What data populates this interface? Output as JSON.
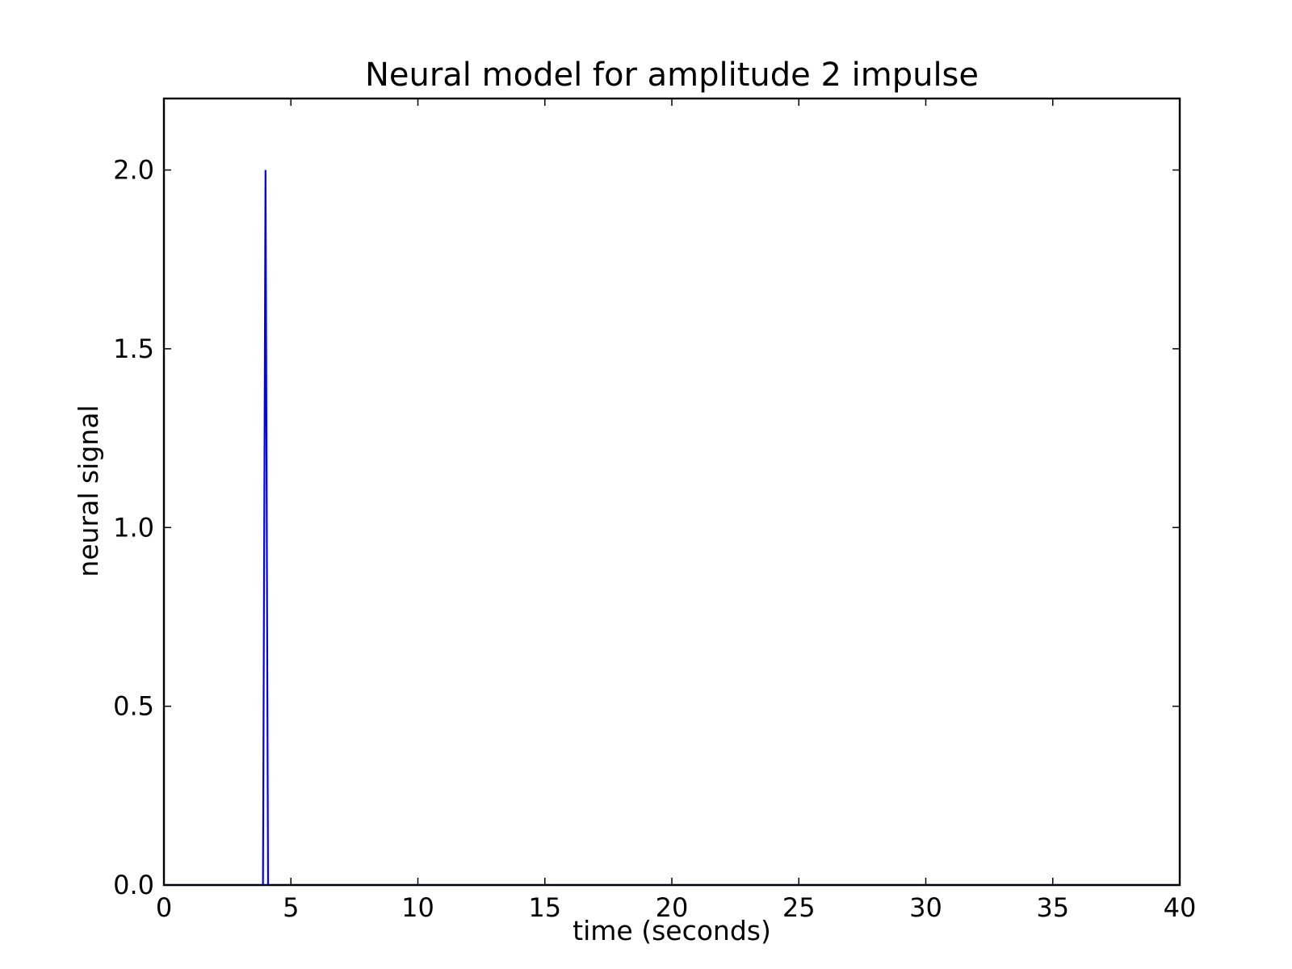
{
  "chart_data": {
    "type": "line",
    "title": "Neural model for amplitude 2 impulse",
    "xlabel": "time (seconds)",
    "ylabel": "neural signal",
    "xlim": [
      0,
      40
    ],
    "ylim": [
      0,
      2.2
    ],
    "x_ticks": [
      "0",
      "5",
      "10",
      "15",
      "20",
      "25",
      "30",
      "35",
      "40"
    ],
    "x_tick_values": [
      0,
      5,
      10,
      15,
      20,
      25,
      30,
      35,
      40
    ],
    "y_ticks": [
      "0.0",
      "0.5",
      "1.0",
      "1.5",
      "2.0"
    ],
    "y_tick_values": [
      0,
      0.5,
      1.0,
      1.5,
      2.0
    ],
    "grid": false,
    "legend": "none",
    "series": [
      {
        "color": "#0000ff",
        "x": [
          0,
          3.9,
          4.0,
          4.1,
          40
        ],
        "y": [
          0,
          0,
          2.0,
          0,
          0
        ]
      }
    ]
  }
}
